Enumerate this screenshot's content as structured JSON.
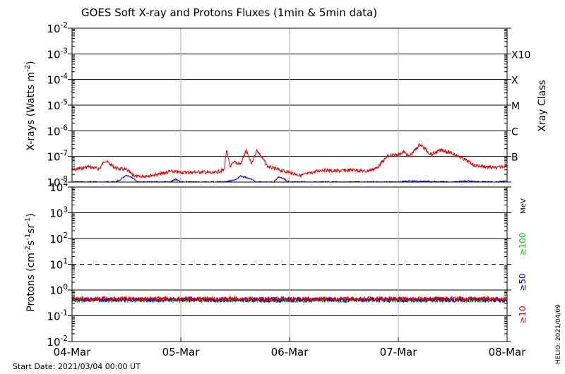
{
  "title": "GOES Soft X-ray and Protons Fluxes   (1min & 5min data)",
  "start_date": "Start Date: 2021/03/04 00:00 UT",
  "helio_stamp": "HELIO: 2021/04/09",
  "colors": {
    "xray_long": "#e00000",
    "xray_short": "#0000e0",
    "p10": "#e00000",
    "p50": "#0000e0",
    "p100": "#00d000",
    "axis": "#000000",
    "day_grid": "#b0b0b0"
  },
  "chart_data": [
    {
      "type": "line",
      "title": "",
      "xlabel": "",
      "ylabel": "X-rays (Watts m^-2)",
      "yscale": "log",
      "ylim": [
        1e-08,
        0.01
      ],
      "x_ticks": [
        "04-Mar",
        "05-Mar",
        "06-Mar",
        "07-Mar",
        "08-Mar"
      ],
      "y_ticks": [
        "10^-8",
        "10^-7",
        "10^-6",
        "10^-5",
        "10^-4",
        "10^-3",
        "10^-2"
      ],
      "right_axis_label": "Xray Class",
      "right_ticks": [
        "X10",
        "X",
        "M",
        "C",
        "B"
      ],
      "series": [
        {
          "x_days": [
            0.0,
            0.1,
            0.15,
            0.25,
            0.3,
            0.4,
            0.5,
            0.55,
            0.6,
            0.7,
            0.8,
            0.9,
            1.0,
            1.1,
            1.2,
            1.3,
            1.35,
            1.4,
            1.42,
            1.45,
            1.5,
            1.55,
            1.6,
            1.65,
            1.7,
            1.8,
            1.9,
            2.0,
            2.1,
            2.15,
            2.3,
            2.4,
            2.5,
            2.6,
            2.7,
            2.8,
            2.9,
            3.0,
            3.05,
            3.1,
            3.2,
            3.3,
            3.4,
            3.5,
            3.6,
            3.7,
            3.8,
            3.9,
            4.0
          ],
          "y": [
            3e-08,
            3.5e-08,
            4e-08,
            3.2e-08,
            7e-08,
            3.5e-08,
            3e-08,
            2e-08,
            1.6e-08,
            1.8e-08,
            2e-08,
            2.6e-08,
            2.4e-08,
            2.4e-08,
            2.5e-08,
            2.2e-08,
            2.6e-08,
            3e-08,
            1.8e-07,
            4e-08,
            6e-08,
            5e-08,
            1.7e-07,
            5e-08,
            1.8e-07,
            4e-08,
            3e-08,
            2.4e-08,
            1.8e-08,
            2e-08,
            3e-08,
            2.7e-08,
            2.8e-08,
            3e-08,
            2.6e-08,
            3.5e-08,
            1e-07,
            1.2e-07,
            1.5e-07,
            1e-07,
            3e-07,
            1.2e-07,
            1.8e-07,
            1.3e-07,
            8e-08,
            4.5e-08,
            4e-08,
            3.5e-08,
            4.5e-08
          ]
        },
        {
          "x_days": [
            0.0,
            0.4,
            0.45,
            0.5,
            0.55,
            0.6,
            0.9,
            0.95,
            1.0,
            1.4,
            1.5,
            1.55,
            1.6,
            1.65,
            1.7,
            1.85,
            1.9,
            1.95,
            2.0,
            2.5,
            3.0,
            3.1,
            3.5,
            3.6,
            3.9,
            4.0
          ],
          "y": [
            1e-08,
            1e-08,
            1.3e-08,
            1.8e-08,
            1.5e-08,
            1e-08,
            1e-08,
            1.3e-08,
            1e-08,
            1e-08,
            1.2e-08,
            1.7e-08,
            1.5e-08,
            1.3e-08,
            1e-08,
            1e-08,
            1.6e-08,
            1.3e-08,
            1e-08,
            1e-08,
            1e-08,
            1.1e-08,
            1e-08,
            1.1e-08,
            1e-08,
            1.1e-08
          ]
        }
      ]
    },
    {
      "type": "line",
      "title": "",
      "xlabel": "",
      "ylabel": "Protons (cm^-2 s^-1 sr^-1)",
      "yscale": "log",
      "ylim": [
        0.01,
        10000
      ],
      "x_ticks": [
        "04-Mar",
        "05-Mar",
        "06-Mar",
        "07-Mar",
        "08-Mar"
      ],
      "y_ticks": [
        "10^-2",
        "10^-1",
        "10^0",
        "10^1",
        "10^2",
        "10^3",
        "10^4"
      ],
      "threshold": 10,
      "right_labels": [
        "MeV",
        "≥100",
        "≥50",
        "≥10"
      ],
      "series": [
        {
          "name": "≥10",
          "level": 0.45
        },
        {
          "name": "≥50",
          "level": 0.42
        },
        {
          "name": "≥100",
          "level": 0.4
        }
      ]
    }
  ]
}
